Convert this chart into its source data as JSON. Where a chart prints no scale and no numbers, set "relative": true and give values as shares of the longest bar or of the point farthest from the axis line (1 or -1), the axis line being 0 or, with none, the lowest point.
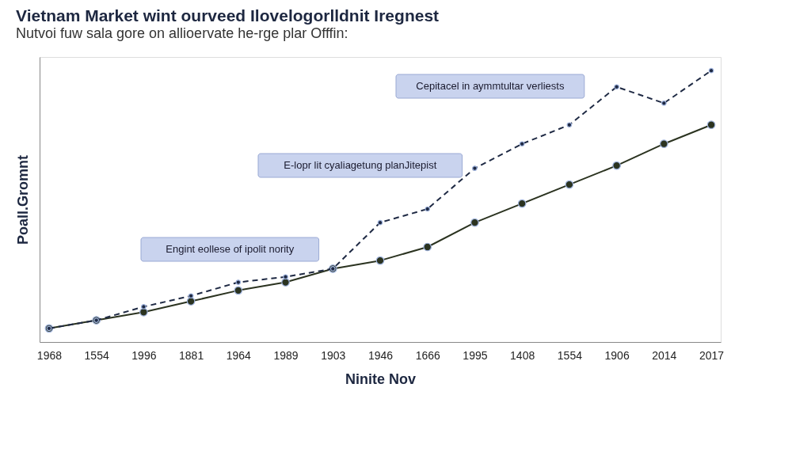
{
  "chart_data": {
    "type": "line",
    "title": "Vietnam Market wint ourveed Ilovelogorlldnit Iregnest",
    "subtitle": "Nutvoi fuw sala gore on allioervate he-rge plar Offfin:",
    "xlabel": "Ninite Nov",
    "ylabel": "Poall.Gromnt",
    "categories": [
      "1968",
      "1554",
      "1996",
      "1881",
      "1964",
      "1989",
      "1903",
      "1946",
      "1666",
      "1995",
      "1408",
      "1554",
      "1906",
      "2014",
      "2017"
    ],
    "relative": true,
    "series": [
      {
        "color": "#2b3320",
        "line_style": "solid",
        "values": [
          0.05,
          0.08,
          0.11,
          0.15,
          0.19,
          0.22,
          0.27,
          0.3,
          0.35,
          0.44,
          0.51,
          0.58,
          0.65,
          0.73,
          0.8
        ]
      },
      {
        "color": "#1f2a44",
        "line_style": "dashed",
        "values": [
          0.05,
          0.08,
          0.13,
          0.17,
          0.22,
          0.24,
          0.27,
          0.44,
          0.49,
          0.64,
          0.73,
          0.8,
          0.94,
          0.88,
          1
        ]
      }
    ],
    "marker": "circle",
    "grid": false,
    "annotations": [
      "Engint eollese of ipolit nority",
      "E-lopr lit cyaliagetung planJitepist",
      "Cepitacel in aymmtultar verliests"
    ]
  }
}
